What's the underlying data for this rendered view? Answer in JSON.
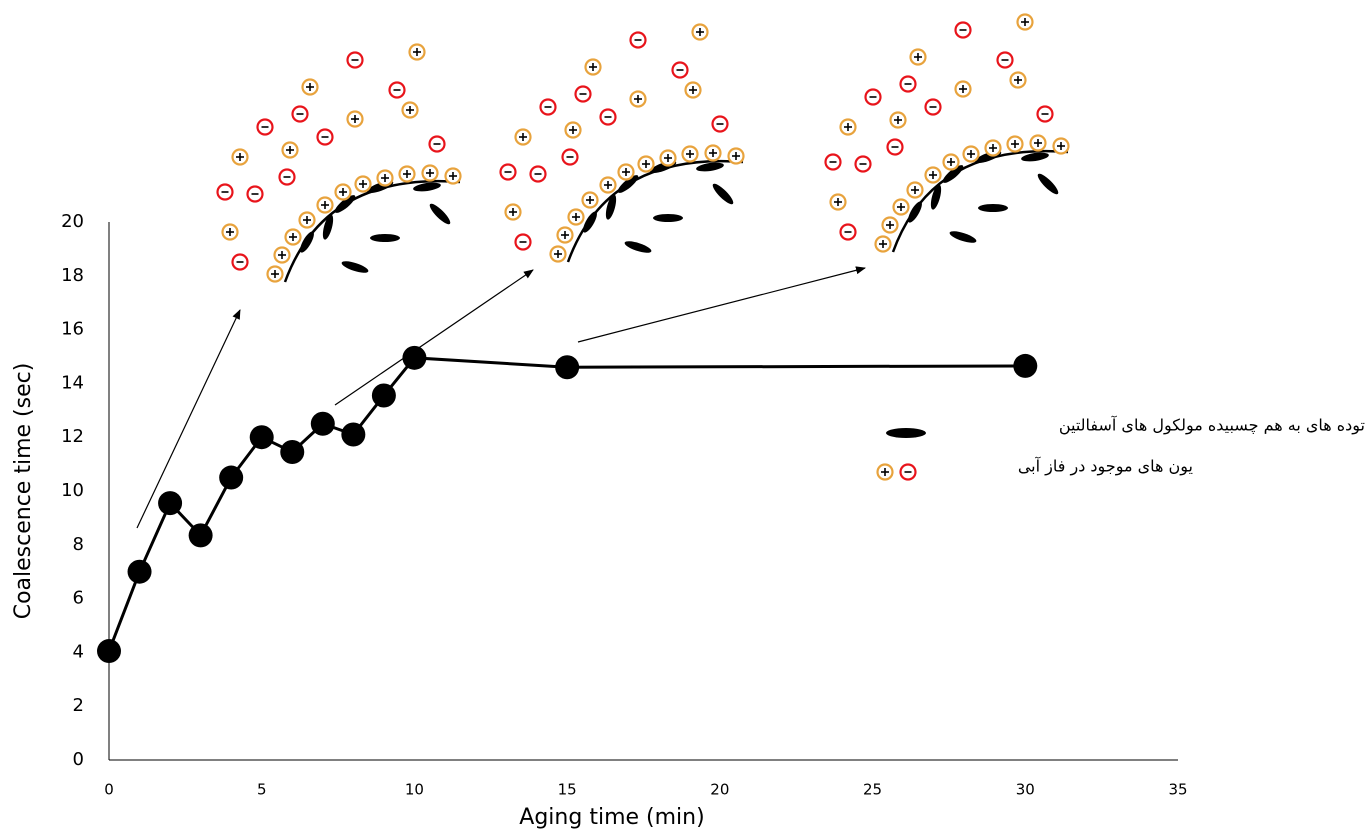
{
  "chart_data": {
    "type": "line",
    "x": [
      0,
      1,
      2,
      3,
      4,
      5,
      6,
      7,
      8,
      9,
      10,
      15,
      30
    ],
    "values": [
      4.05,
      7.0,
      9.55,
      8.35,
      10.5,
      12.0,
      11.45,
      12.5,
      12.1,
      13.55,
      14.95,
      14.6,
      14.65
    ],
    "color": "#000000",
    "marker": "circle",
    "xlim": [
      0,
      35
    ],
    "xticks": [
      0,
      5,
      10,
      15,
      20,
      25,
      30,
      35
    ],
    "ylim": [
      0,
      20
    ],
    "yticks": [
      0,
      2,
      4,
      6,
      8,
      10,
      12,
      14,
      16,
      18,
      20
    ],
    "xlabel": "Aging time (min)",
    "ylabel": "Coalescence time (sec)",
    "annotations": [
      "توده های به هم چسبیده مولکول های آسفالتین",
      "یون های موجود در فاز آبی"
    ]
  }
}
